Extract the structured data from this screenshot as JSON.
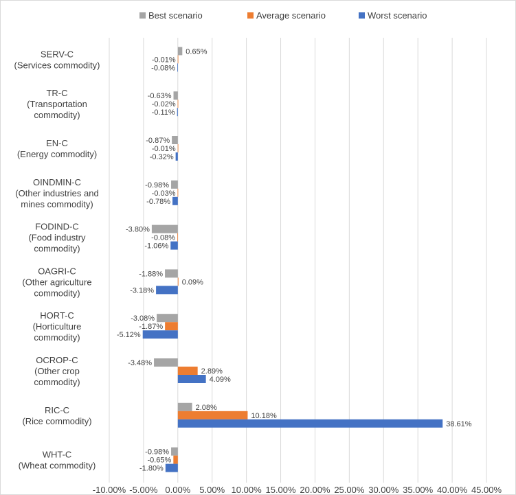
{
  "chart_data": {
    "type": "bar",
    "orientation": "horizontal",
    "categories": [
      [
        "SERV-C",
        "(Services commodity)"
      ],
      [
        "TR-C",
        "(Transportation",
        "commodity)"
      ],
      [
        "EN-C",
        "(Energy commodity)"
      ],
      [
        "OINDMIN-C",
        "(Other industries and",
        "mines commodity)"
      ],
      [
        "FODIND-C",
        "(Food industry",
        "commodity)"
      ],
      [
        "OAGRI-C",
        "(Other agriculture",
        "commodity)"
      ],
      [
        "HORT-C",
        "(Horticulture",
        "commodity)"
      ],
      [
        "OCROP-C",
        "(Other crop",
        "commodity)"
      ],
      [
        "RIC-C",
        "(Rice commodity)"
      ],
      [
        "WHT-C",
        "(Wheat commodity)"
      ]
    ],
    "series": [
      {
        "name": "Best scenario",
        "color": "#a5a5a5",
        "values": [
          0.65,
          -0.63,
          -0.87,
          -0.98,
          -3.8,
          -1.88,
          -3.08,
          -3.48,
          2.08,
          -0.98
        ],
        "labels": [
          "0.65%",
          "-0.63%",
          "-0.87%",
          "-0.98%",
          "-3.80%",
          "-1.88%",
          "-3.08%",
          "-3.48%",
          "2.08%",
          "-0.98%"
        ]
      },
      {
        "name": "Average scenario",
        "color": "#ed7d31",
        "values": [
          -0.01,
          -0.02,
          -0.01,
          -0.03,
          -0.08,
          0.09,
          -1.87,
          2.89,
          10.18,
          -0.65
        ],
        "labels": [
          "-0.01%",
          "-0.02%",
          "-0.01%",
          "-0.03%",
          "-0.08%",
          "0.09%",
          "-1.87%",
          "2.89%",
          "10.18%",
          "-0.65%"
        ]
      },
      {
        "name": "Worst scenario",
        "color": "#4472c4",
        "values": [
          -0.08,
          -0.11,
          -0.32,
          -0.78,
          -1.06,
          -3.18,
          -5.12,
          4.09,
          38.61,
          -1.8
        ],
        "labels": [
          "-0.08%",
          "-0.11%",
          "-0.32%",
          "-0.78%",
          "-1.06%",
          "-3.18%",
          "-5.12%",
          "4.09%",
          "38.61%",
          "-1.80%"
        ]
      }
    ],
    "xlim": [
      -10,
      45
    ],
    "xticks": [
      -10,
      -5,
      0,
      5,
      10,
      15,
      20,
      25,
      30,
      35,
      40,
      45
    ],
    "xtick_labels": [
      "-10.00%",
      "-5.00%",
      "0.00%",
      "5.00%",
      "10.00%",
      "15.00%",
      "20.00%",
      "25.00%",
      "30.00%",
      "35.00%",
      "40.00%",
      "45.00%"
    ],
    "grid": "vertical",
    "legend_position": "top"
  }
}
